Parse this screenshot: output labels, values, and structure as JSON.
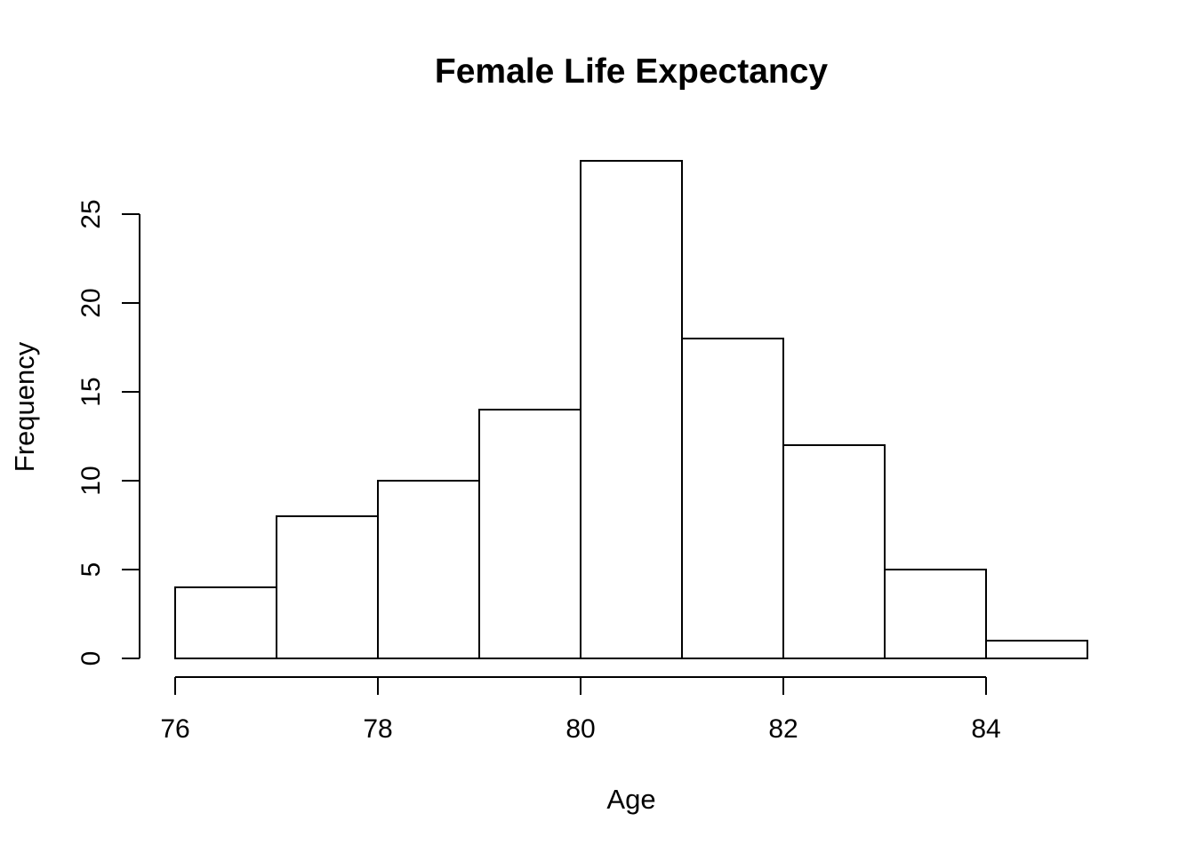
{
  "chart_data": {
    "type": "bar",
    "subtype": "histogram",
    "title": "Female Life Expectancy",
    "xlabel": "Age",
    "ylabel": "Frequency",
    "bin_edges": [
      76,
      77,
      78,
      79,
      80,
      81,
      82,
      83,
      84,
      85
    ],
    "values": [
      4,
      8,
      10,
      14,
      28,
      18,
      12,
      5,
      1
    ],
    "x_ticks": [
      76,
      78,
      80,
      82,
      84
    ],
    "y_ticks": [
      0,
      5,
      10,
      15,
      20,
      25
    ],
    "xlim": [
      76,
      85
    ],
    "ylim": [
      0,
      28
    ],
    "bar_fill": "#ffffff",
    "bar_stroke": "#000000",
    "axis_color": "#000000",
    "background": "#ffffff",
    "grid": false,
    "legend": false
  }
}
